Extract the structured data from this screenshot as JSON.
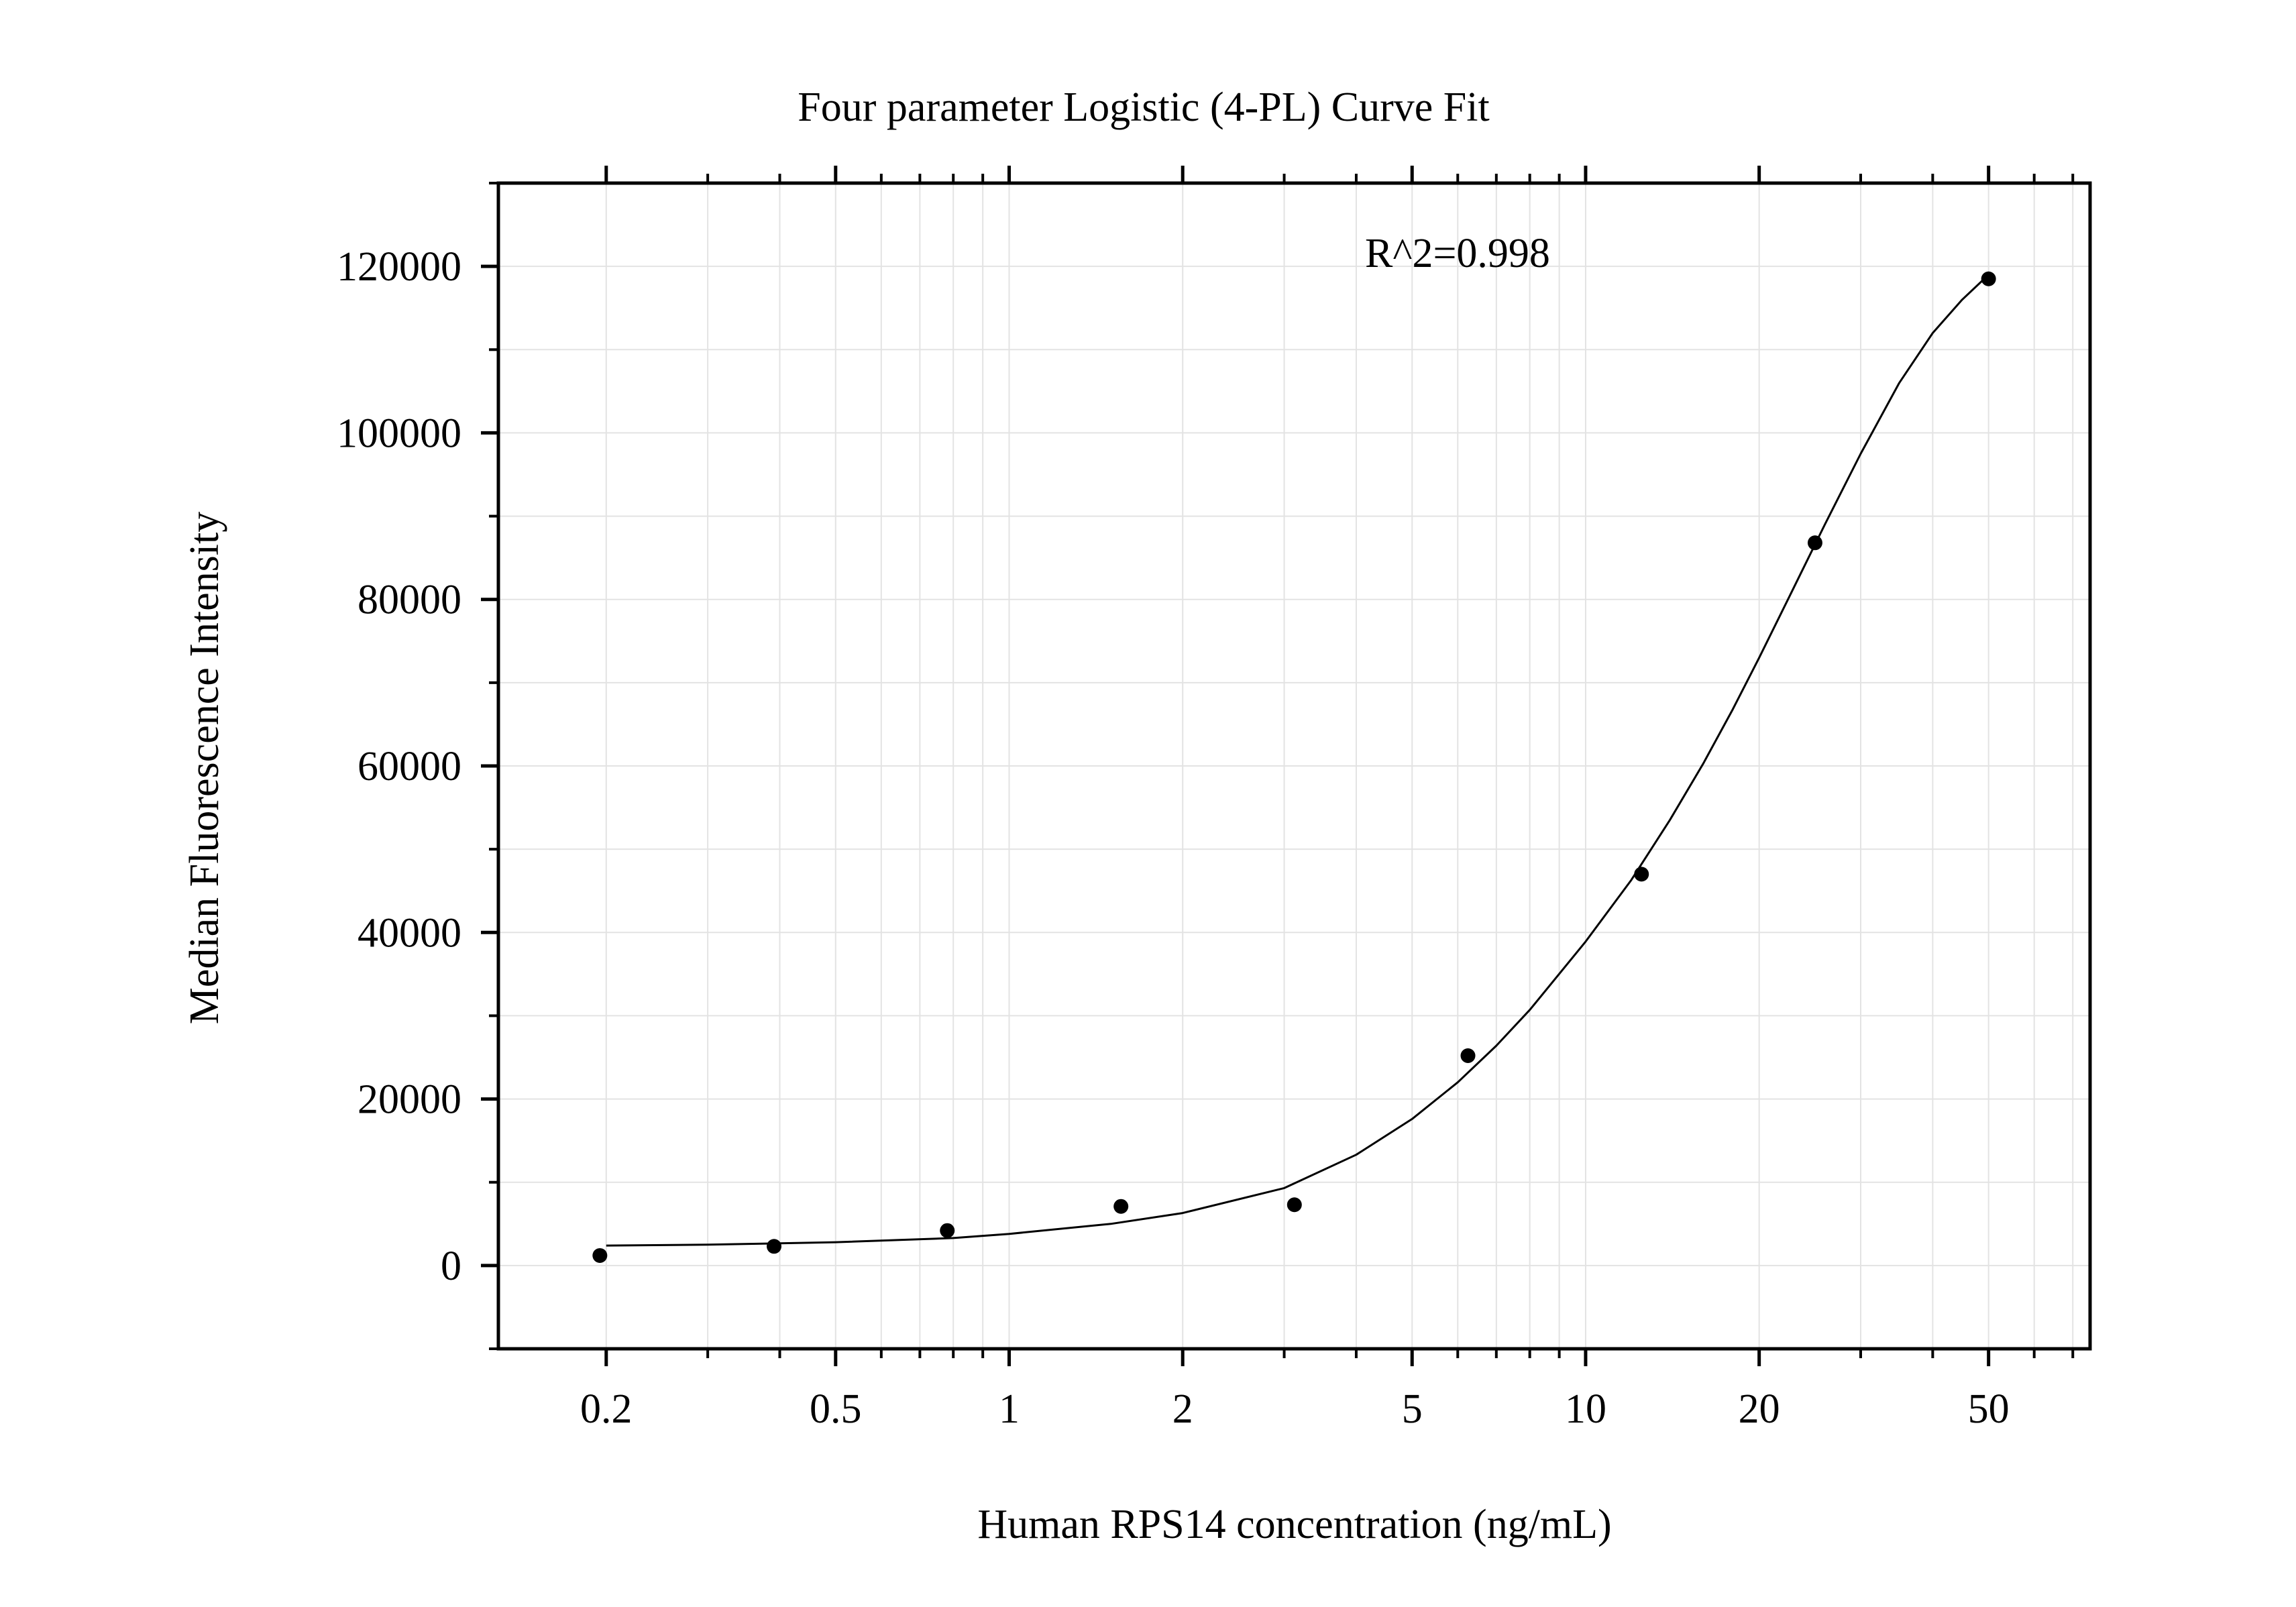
{
  "chart_data": {
    "type": "scatter",
    "title": "Four parameter Logistic (4-PL) Curve Fit",
    "xlabel": "Human RPS14 concentration (ng/mL)",
    "ylabel": "Median Fluorescence Intensity",
    "x_scale": "log",
    "xlim": [
      0.13,
      75
    ],
    "ylim": [
      -10000,
      130000
    ],
    "grid": true,
    "annotation": "R^2=0.998",
    "x_ticks": [
      {
        "value": 0.2,
        "label": "0.2"
      },
      {
        "value": 0.5,
        "label": "0.5"
      },
      {
        "value": 1,
        "label": "1"
      },
      {
        "value": 2,
        "label": "2"
      },
      {
        "value": 5,
        "label": "5"
      },
      {
        "value": 10,
        "label": "10"
      },
      {
        "value": 20,
        "label": "20"
      },
      {
        "value": 50,
        "label": "50"
      }
    ],
    "y_ticks": [
      {
        "value": 0,
        "label": "0"
      },
      {
        "value": 20000,
        "label": "20000"
      },
      {
        "value": 40000,
        "label": "40000"
      },
      {
        "value": 60000,
        "label": "60000"
      },
      {
        "value": 80000,
        "label": "80000"
      },
      {
        "value": 100000,
        "label": "100000"
      },
      {
        "value": 120000,
        "label": "120000"
      }
    ],
    "series": [
      {
        "x": [
          0.195,
          0.391,
          0.781,
          1.563,
          3.125,
          6.25,
          12.5,
          25,
          50
        ],
        "y": [
          1200,
          2300,
          4200,
          7100,
          7300,
          25200,
          47000,
          86800,
          118500
        ]
      }
    ],
    "fit_curve": {
      "model": "4PL",
      "x": [
        0.2,
        0.3,
        0.5,
        0.8,
        1,
        1.5,
        2,
        3,
        4,
        5,
        6,
        7,
        8,
        10,
        12,
        14,
        16,
        18,
        20,
        23,
        26,
        30,
        35,
        40,
        45,
        50
      ],
      "y": [
        2400,
        2500,
        2800,
        3300,
        3800,
        5000,
        6300,
        9300,
        13300,
        17600,
        22000,
        26400,
        30700,
        38900,
        46300,
        53500,
        60300,
        66800,
        73000,
        81500,
        89000,
        97500,
        106000,
        112000,
        116000,
        119000
      ]
    }
  }
}
